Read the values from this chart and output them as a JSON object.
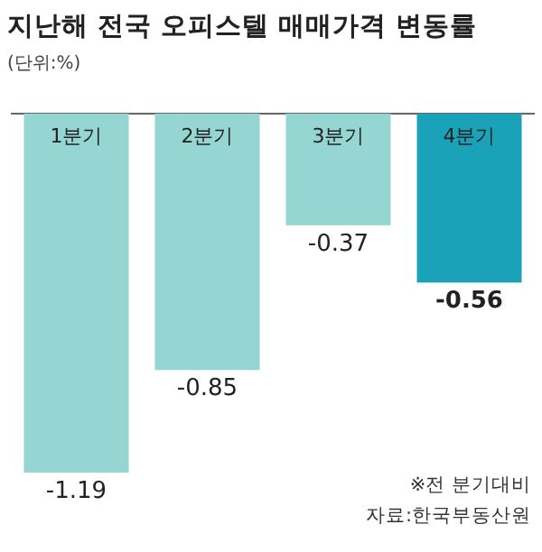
{
  "chart_data": {
    "type": "bar",
    "title": "지난해 전국 오피스텔 매매가격 변동률",
    "subtitle": "(단위:%)",
    "categories": [
      "1분기",
      "2분기",
      "3분기",
      "4분기"
    ],
    "values": [
      -1.19,
      -0.85,
      -0.37,
      -0.56
    ],
    "colors": [
      "#95d5d2",
      "#95d5d2",
      "#95d5d2",
      "#1aa3b8"
    ],
    "data_labels": true,
    "annotations": [
      "※전 분기대비",
      "자료:한국부동산원"
    ]
  }
}
